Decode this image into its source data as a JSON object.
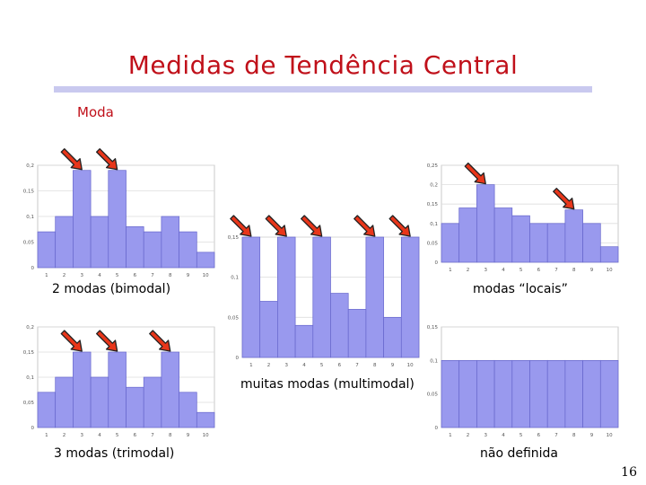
{
  "slide": {
    "title": "Medidas de Tendência Central",
    "subtitle": "Moda",
    "page_number": "16"
  },
  "colors": {
    "title": "#c0101a",
    "bar_fill": "#9999ee",
    "bar_stroke": "#6666cc",
    "arrow_fill": "#e8361a",
    "arrow_stroke": "#222222",
    "grid": "#dddddd"
  },
  "chart_data": [
    {
      "type": "bar",
      "caption": "2 modas (bimodal)",
      "categories": [
        "1",
        "2",
        "3",
        "4",
        "5",
        "6",
        "7",
        "8",
        "9",
        "10"
      ],
      "values": [
        0.07,
        0.1,
        0.19,
        0.1,
        0.19,
        0.08,
        0.07,
        0.1,
        0.07,
        0.03
      ],
      "ylim": [
        0,
        0.2
      ],
      "yticks": [
        "0",
        "0,05",
        "0,1",
        "0,15",
        "0,2"
      ],
      "modes": [
        3,
        5
      ],
      "grid": true
    },
    {
      "type": "bar",
      "caption": "muitas modas (multimodal)",
      "categories": [
        "1",
        "2",
        "3",
        "4",
        "5",
        "6",
        "7",
        "8",
        "9",
        "10"
      ],
      "values": [
        0.15,
        0.07,
        0.15,
        0.04,
        0.15,
        0.08,
        0.06,
        0.15,
        0.05,
        0.15
      ],
      "ylim": [
        0,
        0.15
      ],
      "yticks": [
        "0",
        "0,05",
        "0,1",
        "0,15"
      ],
      "modes": [
        1,
        3,
        5,
        8,
        10
      ],
      "grid": true
    },
    {
      "type": "bar",
      "caption": "modas “locais”",
      "categories": [
        "1",
        "2",
        "3",
        "4",
        "5",
        "6",
        "7",
        "8",
        "9",
        "10"
      ],
      "values": [
        0.1,
        0.14,
        0.2,
        0.14,
        0.12,
        0.1,
        0.1,
        0.135,
        0.1,
        0.04
      ],
      "ylim": [
        0,
        0.25
      ],
      "yticks": [
        "0",
        "0,05",
        "0,1",
        "0,15",
        "0,2",
        "0,25"
      ],
      "modes": [
        3,
        8
      ],
      "grid": true
    },
    {
      "type": "bar",
      "caption": "3 modas (trimodal)",
      "categories": [
        "1",
        "2",
        "3",
        "4",
        "5",
        "6",
        "7",
        "8",
        "9",
        "10"
      ],
      "values": [
        0.07,
        0.1,
        0.15,
        0.1,
        0.15,
        0.08,
        0.1,
        0.15,
        0.07,
        0.03
      ],
      "ylim": [
        0,
        0.2
      ],
      "yticks": [
        "0",
        "0,05",
        "0,1",
        "0,15",
        "0,2"
      ],
      "modes": [
        3,
        5,
        8
      ],
      "grid": true
    },
    {
      "type": "bar",
      "caption": "não definida",
      "categories": [
        "1",
        "2",
        "3",
        "4",
        "5",
        "6",
        "7",
        "8",
        "9",
        "10"
      ],
      "values": [
        0.1,
        0.1,
        0.1,
        0.1,
        0.1,
        0.1,
        0.1,
        0.1,
        0.1,
        0.1
      ],
      "ylim": [
        0,
        0.15
      ],
      "yticks": [
        "0",
        "0,05",
        "0,1",
        "0,15"
      ],
      "modes": [],
      "grid": true
    }
  ]
}
